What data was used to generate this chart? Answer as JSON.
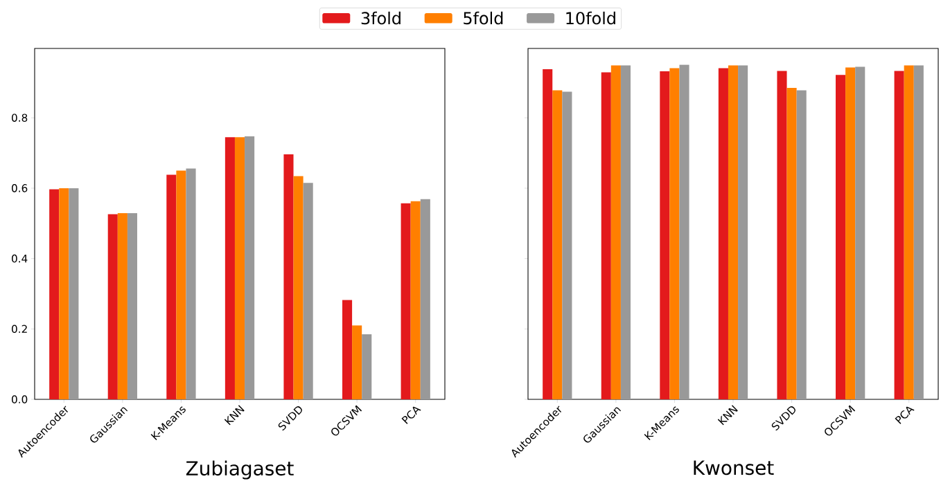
{
  "chart_data": [
    {
      "type": "bar",
      "xlabel": "Zubiagaset",
      "categories": [
        "Autoencoder",
        "Gaussian",
        "K-Means",
        "KNN",
        "SVDD",
        "OCSVM",
        "PCA"
      ],
      "series": [
        {
          "name": "3fold",
          "color": "#e31a1c",
          "values": [
            0.597,
            0.526,
            0.638,
            0.745,
            0.696,
            0.282,
            0.557
          ]
        },
        {
          "name": "5fold",
          "color": "#ff7f00",
          "values": [
            0.6,
            0.529,
            0.65,
            0.745,
            0.634,
            0.21,
            0.563
          ]
        },
        {
          "name": "10fold",
          "color": "#999999",
          "values": [
            0.6,
            0.529,
            0.656,
            0.747,
            0.615,
            0.185,
            0.569
          ]
        }
      ],
      "ylim": [
        0,
        0.997
      ],
      "yticks": [
        {
          "value": 0,
          "label": "0.0"
        },
        {
          "value": 0.2,
          "label": "0.2"
        },
        {
          "value": 0.4,
          "label": "0.4"
        },
        {
          "value": 0.6,
          "label": "0.6"
        },
        {
          "value": 0.8,
          "label": "0.8"
        }
      ],
      "legend": "top",
      "grid": false
    },
    {
      "type": "bar",
      "xlabel": "Kwonset",
      "categories": [
        "Autoencoder",
        "Gaussian",
        "K-Means",
        "KNN",
        "SVDD",
        "OCSVM",
        "PCA"
      ],
      "series": [
        {
          "color": "#e31a1c",
          "values": [
            0.938,
            0.929,
            0.932,
            0.941,
            0.933,
            0.922,
            0.933
          ]
        },
        {
          "color": "#ff7f00",
          "values": [
            0.878,
            0.949,
            0.941,
            0.949,
            0.885,
            0.943,
            0.949
          ]
        },
        {
          "color": "#999999",
          "values": [
            0.874,
            0.949,
            0.951,
            0.949,
            0.878,
            0.945,
            0.949
          ]
        }
      ],
      "ylim": [
        0,
        0.997
      ],
      "yticks": [
        0,
        0.2,
        0.4,
        0.6,
        0.8
      ],
      "tick_labels": "x",
      "grid": false
    }
  ]
}
